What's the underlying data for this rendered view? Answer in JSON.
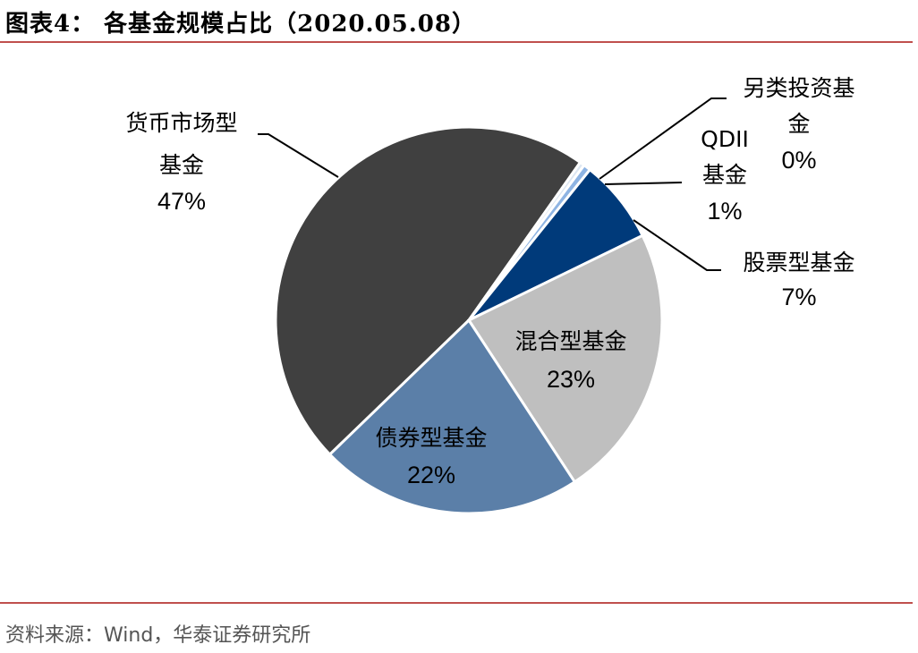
{
  "header": {
    "title": "图表4：  各基金规模占比（2020.05.08）"
  },
  "footer": {
    "source": "资料来源：Wind，华泰证券研究所"
  },
  "chart_data": {
    "type": "pie",
    "title": "",
    "slices": [
      {
        "label_lines": [
          "货币市场型",
          "基金"
        ],
        "value_label": "47%",
        "value": 47,
        "color": "#404040"
      },
      {
        "label_lines": [
          "另类投资基",
          "金"
        ],
        "value_label": "0%",
        "value": 0.4,
        "color": "#DCE6F1"
      },
      {
        "label_lines": [
          "QDII",
          "基金"
        ],
        "value_label": "1%",
        "value": 0.6,
        "color": "#8EB4E3"
      },
      {
        "label_lines": [
          "股票型基金"
        ],
        "value_label": "7%",
        "value": 7,
        "color": "#003A7A"
      },
      {
        "label_lines": [
          "混合型基金"
        ],
        "value_label": "23%",
        "value": 23,
        "color": "#BFBFBF"
      },
      {
        "label_lines": [
          "债券型基金"
        ],
        "value_label": "22%",
        "value": 22,
        "color": "#5B7FA8"
      }
    ]
  }
}
